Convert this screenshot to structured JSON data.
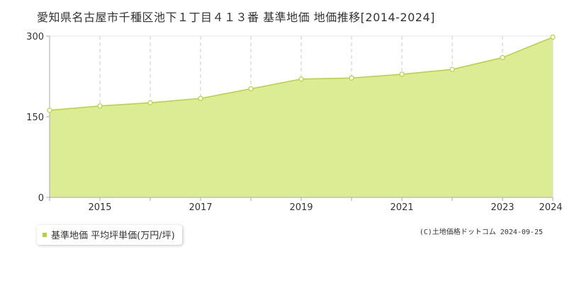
{
  "chart_data": {
    "type": "area",
    "title": "愛知県名古屋市千種区池下１丁目４１３番 基準地価 地価推移[2014-2024]",
    "x": [
      2014,
      2015,
      2016,
      2017,
      2018,
      2019,
      2020,
      2021,
      2022,
      2023,
      2024
    ],
    "x_tick_labels": [
      "2015",
      "2017",
      "2019",
      "2021",
      "2023",
      "2024"
    ],
    "y_tick_labels": [
      "0",
      "150",
      "300"
    ],
    "series": [
      {
        "name": "基準地価 平均坪単価(万円/坪)",
        "values": [
          162,
          170,
          176,
          184,
          202,
          220,
          222,
          229,
          238,
          260,
          298
        ]
      }
    ],
    "ylim": [
      0,
      300
    ],
    "xlim": [
      2014,
      2024
    ],
    "grid": "dashed vertical every year, dashed horizontal at 150",
    "legend_position": "bottom-left",
    "colors": {
      "fill": "#dbec95",
      "line": "#b5d334",
      "marker_fill": "#ffffff",
      "axis": "#aaaaaa",
      "grid": "#c8c8c8"
    }
  },
  "legend": {
    "label": "基準地価 平均坪単価(万円/坪)"
  },
  "credit": "(C)土地価格ドットコム 2024-09-25"
}
